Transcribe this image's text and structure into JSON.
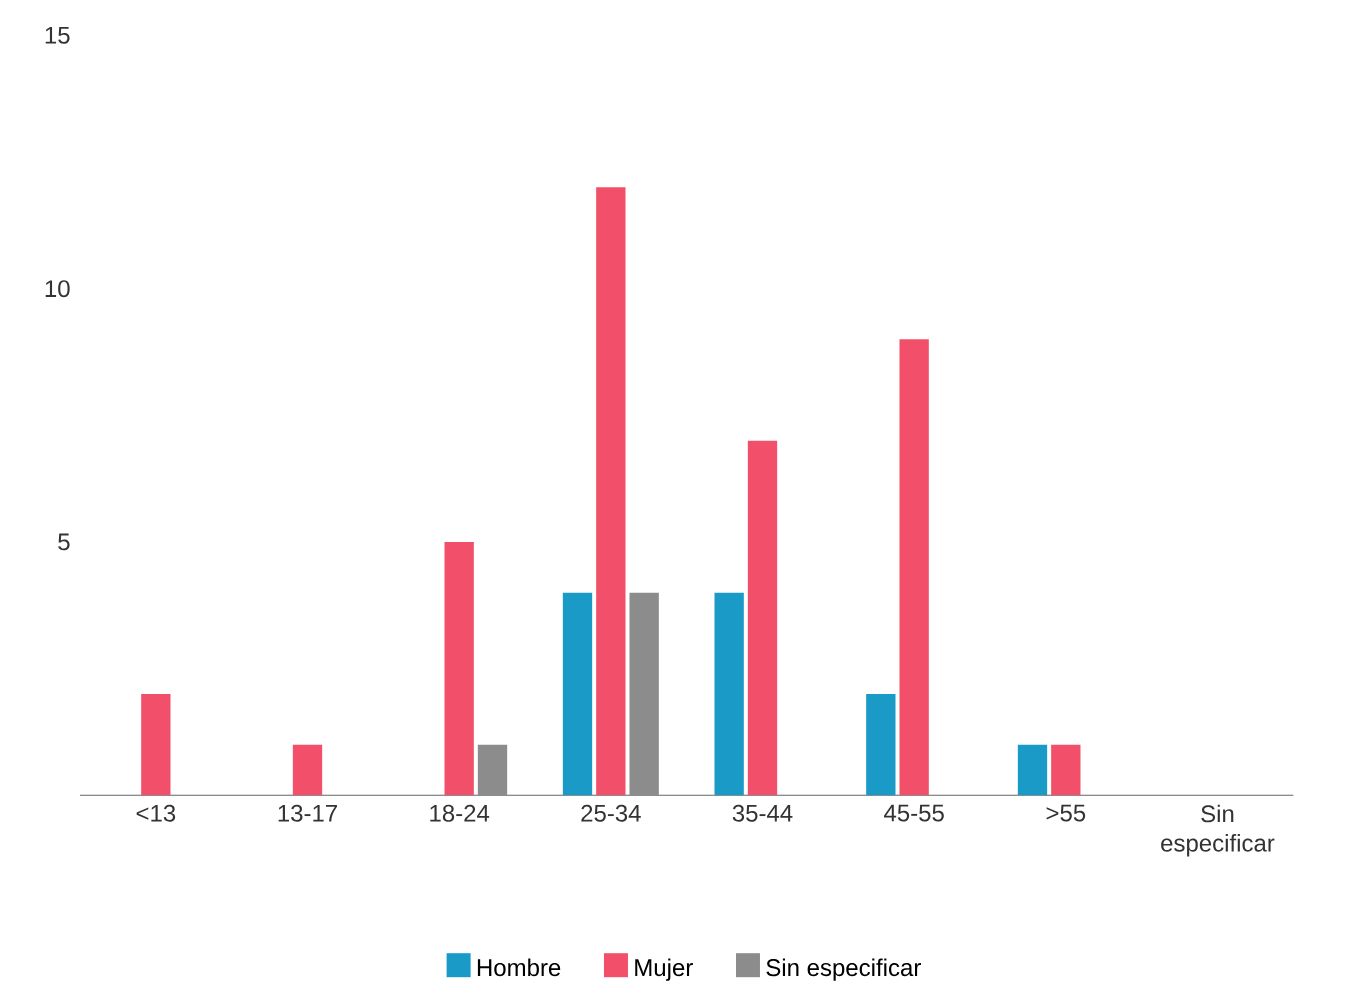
{
  "chart_data": {
    "type": "bar",
    "categories": [
      "<13",
      "13-17",
      "18-24",
      "25-34",
      "35-44",
      "45-55",
      ">55",
      "Sin especificar"
    ],
    "series": [
      {
        "name": "Hombre",
        "color": "#1a9bc7",
        "values": [
          0,
          0,
          0,
          4,
          4,
          2,
          1,
          0
        ]
      },
      {
        "name": "Mujer",
        "color": "#f2506a",
        "values": [
          2,
          1,
          5,
          12,
          7,
          9,
          1,
          0
        ]
      },
      {
        "name": "Sin especificar",
        "color": "#8c8c8c",
        "values": [
          0,
          0,
          1,
          4,
          0,
          0,
          0,
          0
        ]
      }
    ],
    "ylim": [
      0,
      15
    ],
    "yticks": [
      5,
      10,
      15
    ],
    "grid": false,
    "legend": "bottom"
  }
}
